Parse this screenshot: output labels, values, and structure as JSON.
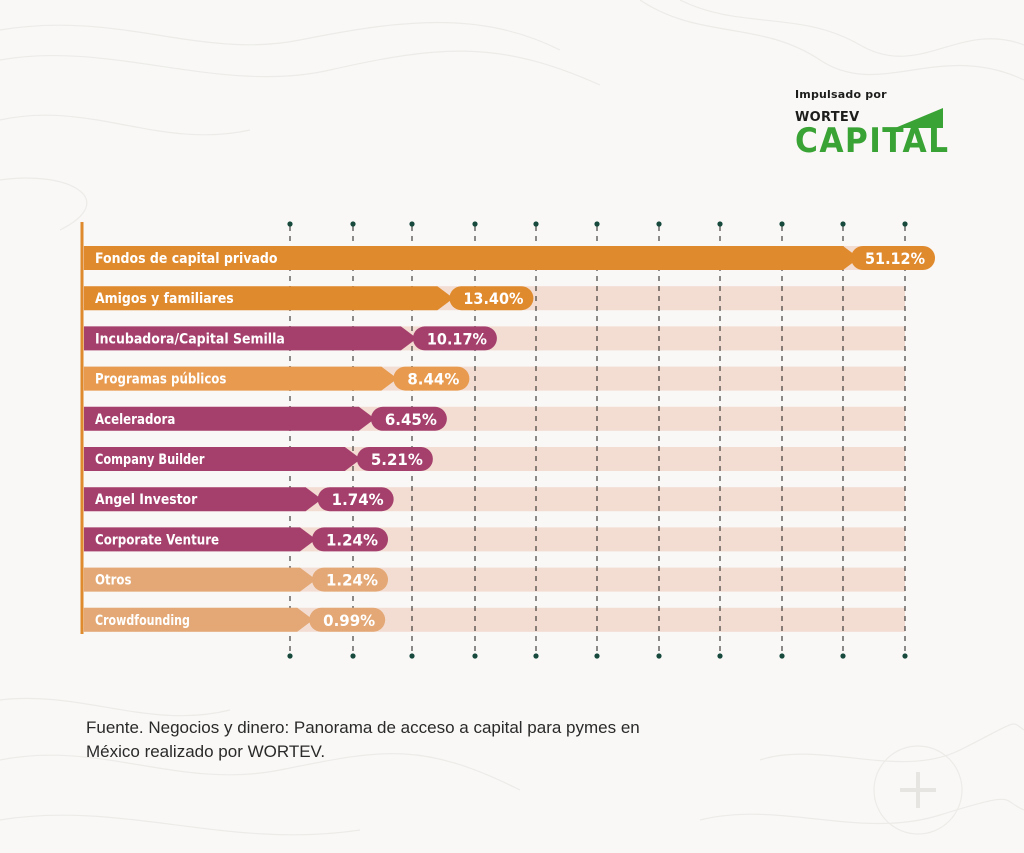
{
  "brand": {
    "tagline": "Impulsado por",
    "name": "WORTEV",
    "sub": "CAPITAL",
    "color": "#3aa335"
  },
  "chart_data": {
    "type": "bar",
    "orientation": "horizontal",
    "categories": [
      "Fondos de capital privado",
      "Amigos y familiares",
      "Incubadora/Capital Semilla",
      "Programas públicos",
      "Aceleradora",
      "Company Builder",
      "Angel Investor",
      "Corporate Venture",
      "Otros",
      "Crowdfounding"
    ],
    "values": [
      51.12,
      13.4,
      10.17,
      8.44,
      6.45,
      5.21,
      1.74,
      1.24,
      1.24,
      0.99
    ],
    "labels": [
      "51.12%",
      "13.40%",
      "10.17%",
      "8.44%",
      "6.45%",
      "5.21%",
      "1.74%",
      "1.24%",
      "1.24%",
      "0.99%"
    ],
    "colors": [
      "#e08a2e",
      "#e08a2e",
      "#a5406d",
      "#e89a4e",
      "#a5406d",
      "#a5406d",
      "#a5406d",
      "#a5406d",
      "#e3a875",
      "#e3a875"
    ],
    "title": "",
    "xlabel": "",
    "ylabel": "",
    "grid": true,
    "legend": "none"
  },
  "source": {
    "text": "Fuente. Negocios y dinero: Panorama de acceso a capital para pymes en México realizado por WORTEV."
  }
}
